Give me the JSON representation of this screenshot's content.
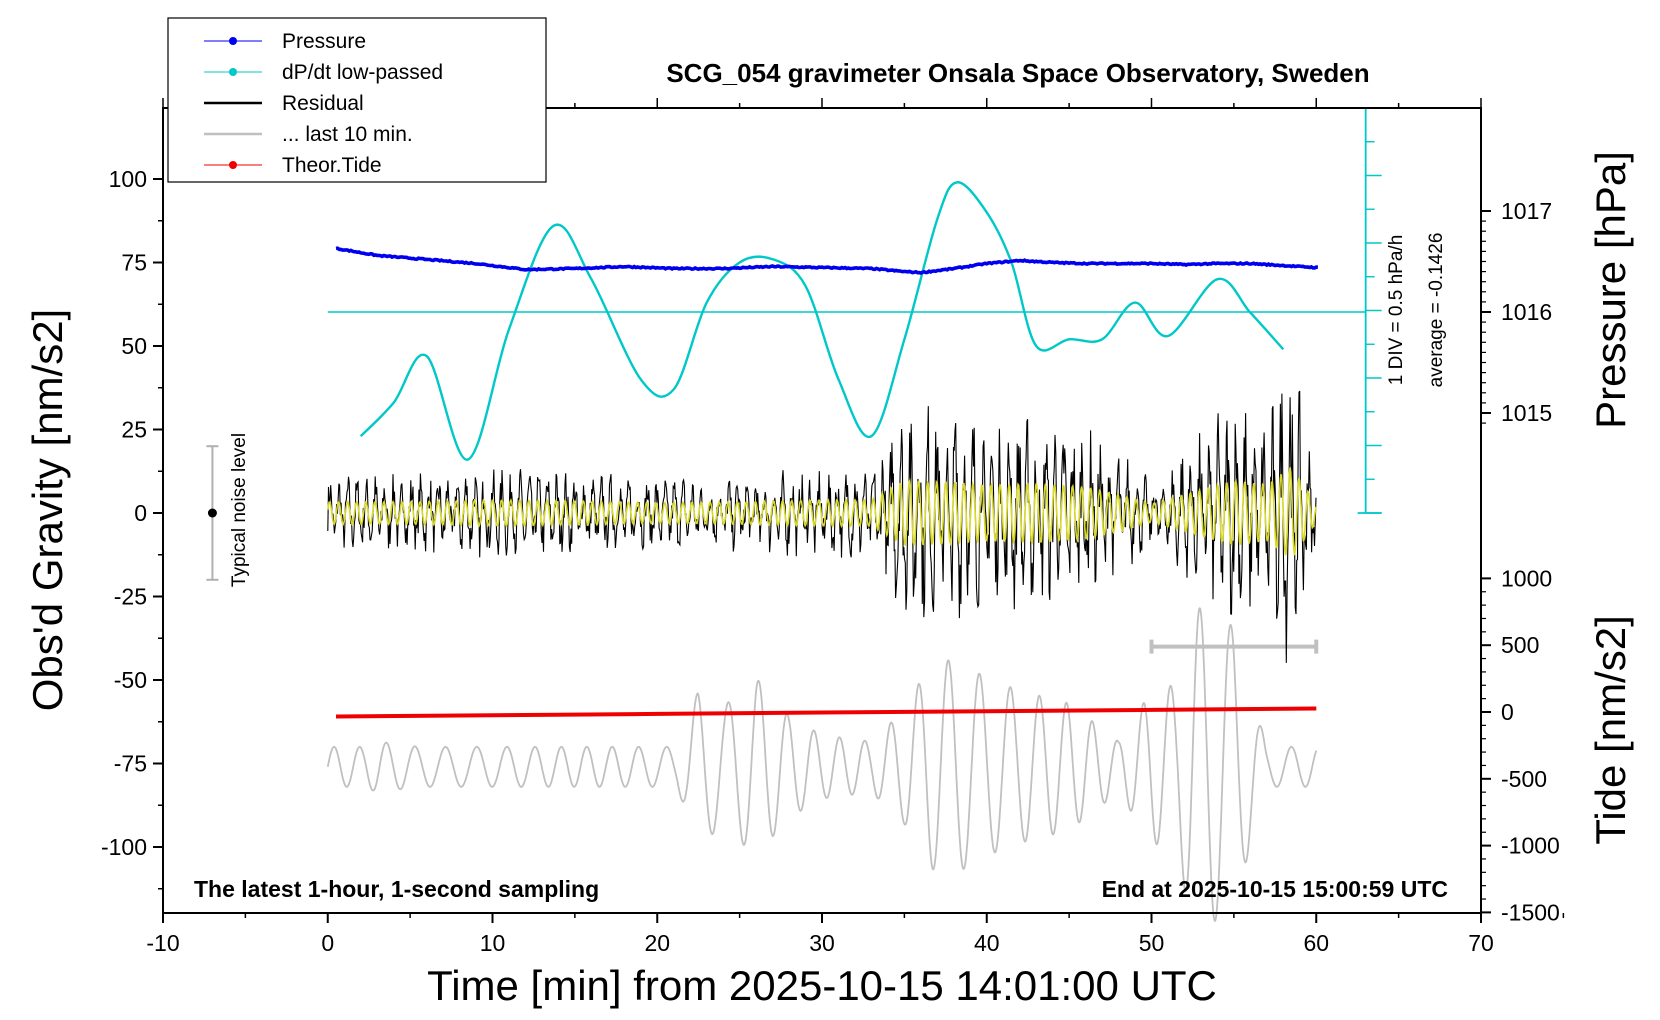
{
  "chart_data": {
    "type": "line",
    "title": "SCG_054 gravimeter Onsala Space Observatory, Sweden",
    "xlabel": "Time [min] from 2025-10-15 14:01:00 UTC",
    "ylabel_left": "Obs'd Gravity [nm/s2]",
    "ylabel_right_pressure": "Pressure [hPa]",
    "ylabel_right_tide": "Tide [nm/s2]",
    "xlim": [
      -10,
      70
    ],
    "ylim_gravity": [
      -120,
      120
    ],
    "ylim_tide": [
      -1500,
      1500
    ],
    "x_ticks": [
      "-10",
      "0",
      "10",
      "20",
      "30",
      "40",
      "50",
      "60",
      "70"
    ],
    "y_left_ticks": [
      "100",
      "75",
      "50",
      "25",
      "0",
      "-25",
      "-50",
      "-75",
      "-100"
    ],
    "y_pressure_ticks": [
      "1017",
      "1016",
      "1015"
    ],
    "y_tide_ticks": [
      "1000",
      "500",
      "0",
      "-500",
      "-1000",
      "-1500"
    ],
    "grid": false,
    "legend_position": "top-left",
    "legend": [
      {
        "label": "Pressure",
        "color": "#0000ee",
        "marker": "dot"
      },
      {
        "label": "dP/dt low-passed",
        "color": "#00c8c8",
        "marker": "dot"
      },
      {
        "label": "Residual",
        "color": "#000000",
        "marker": "none"
      },
      {
        "label": "... last 10 min.",
        "color": "#c0c0c0",
        "marker": "none"
      },
      {
        "label": "Theor.Tide",
        "color": "#ee0000",
        "marker": "dot"
      }
    ],
    "annotations": {
      "bottom_left": "The latest 1-hour, 1-second sampling",
      "bottom_right": "End at 2025-10-15 15:00:59 UTC",
      "scale_div": "1 DIV = 0.5 hPa/h",
      "scale_avg": "average = -0.1426",
      "noise_label": "Typical noise level"
    },
    "series": [
      {
        "name": "Pressure",
        "axis": "pressure",
        "x": [
          0.5,
          3,
          6,
          9,
          12,
          15,
          18,
          21,
          24,
          27,
          30,
          33,
          35,
          36,
          38,
          40,
          42,
          44,
          46,
          48,
          50,
          52,
          54,
          56,
          58,
          60
        ],
        "values": [
          1016.63,
          1016.56,
          1016.52,
          1016.48,
          1016.42,
          1016.43,
          1016.45,
          1016.43,
          1016.43,
          1016.45,
          1016.44,
          1016.43,
          1016.4,
          1016.39,
          1016.43,
          1016.48,
          1016.51,
          1016.49,
          1016.48,
          1016.48,
          1016.48,
          1016.47,
          1016.48,
          1016.48,
          1016.46,
          1016.44
        ]
      },
      {
        "name": "dP/dt low-passed",
        "axis": "gravity",
        "x": [
          2,
          4,
          6,
          8.5,
          11,
          13.7,
          16,
          19,
          21,
          23,
          25,
          27,
          29,
          31,
          33,
          35,
          37,
          38.2,
          40,
          41.5,
          43,
          45,
          47,
          49,
          51,
          54,
          56,
          58
        ],
        "values": [
          23,
          33,
          47,
          16,
          55,
          86,
          70,
          40,
          37,
          63,
          75,
          76,
          68,
          40,
          23,
          52,
          88,
          99,
          90,
          75,
          50,
          52,
          52,
          63,
          53,
          70,
          60,
          49
        ]
      },
      {
        "name": "Residual",
        "axis": "gravity",
        "x": [
          0,
          5,
          10,
          15,
          20,
          25,
          30,
          33,
          35,
          38,
          40,
          43,
          46,
          48,
          50,
          53,
          55,
          57,
          58.5,
          60
        ],
        "values": [
          -12,
          12,
          -14,
          13,
          -11,
          12,
          -14,
          14,
          -35,
          33,
          -30,
          32,
          -28,
          20,
          -10,
          25,
          -35,
          30,
          -50,
          10
        ]
      },
      {
        "name": "... last 10 min.",
        "axis": "tide_overlay",
        "x": [
          0,
          3,
          6,
          10,
          14,
          18,
          21,
          22.5,
          24,
          26,
          28,
          30,
          33,
          35,
          36.5,
          38,
          40,
          42,
          45,
          48,
          50,
          51.5,
          52.5,
          53.5,
          55,
          57,
          60
        ],
        "values": [
          -78,
          -68,
          -82,
          -70,
          -78,
          -72,
          -80,
          -52,
          -95,
          -48,
          -92,
          -66,
          -84,
          -58,
          -108,
          -42,
          -104,
          -52,
          -96,
          -68,
          -52,
          -102,
          -26,
          -126,
          -32,
          -82,
          -80
        ]
      },
      {
        "name": "Theor.Tide",
        "axis": "tide",
        "x": [
          0.5,
          10,
          20,
          30,
          40,
          50,
          60
        ],
        "values": [
          -34,
          -24,
          -14,
          -4,
          6,
          16,
          26
        ]
      }
    ]
  }
}
